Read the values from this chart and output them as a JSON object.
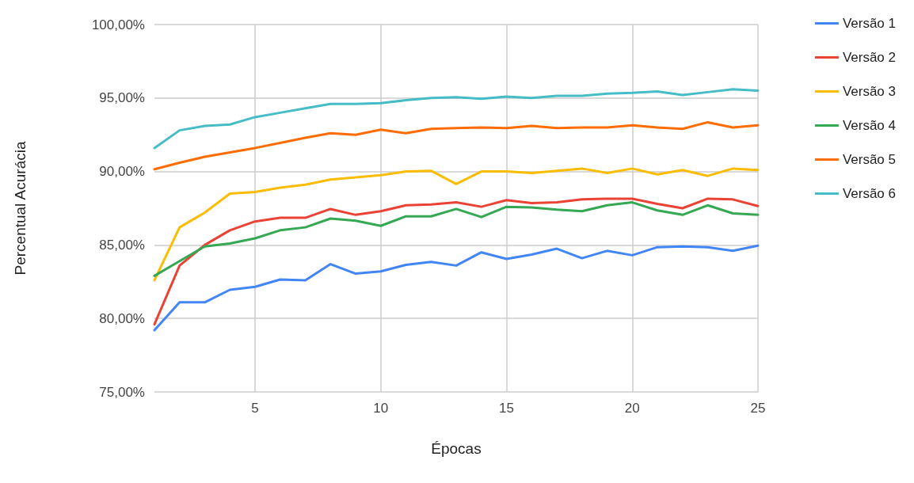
{
  "chart_data": {
    "type": "line",
    "xlabel": "Épocas",
    "ylabel": "Percentual Acurácia",
    "x": [
      1,
      2,
      3,
      4,
      5,
      6,
      7,
      8,
      9,
      10,
      11,
      12,
      13,
      14,
      15,
      16,
      17,
      18,
      19,
      20,
      21,
      22,
      23,
      24,
      25
    ],
    "xlim": [
      1,
      25
    ],
    "xticks": [
      5,
      10,
      15,
      20,
      25
    ],
    "ylim": [
      75,
      100
    ],
    "yticks": [
      {
        "value": 75,
        "label": "75,00%"
      },
      {
        "value": 80,
        "label": "80,00%"
      },
      {
        "value": 85,
        "label": "85,00%"
      },
      {
        "value": 90,
        "label": "90,00%"
      },
      {
        "value": 95,
        "label": "95,00%"
      },
      {
        "value": 100,
        "label": "100,00%"
      }
    ],
    "grid": true,
    "legend": "top right",
    "marker": "none",
    "line_style": "solid",
    "series": [
      {
        "name": "Versão 1",
        "color": "#4285f4",
        "values": [
          79.2,
          81.1,
          81.1,
          81.95,
          82.15,
          82.65,
          82.6,
          83.7,
          83.05,
          83.2,
          83.65,
          83.85,
          83.6,
          84.5,
          84.05,
          84.35,
          84.75,
          84.1,
          84.6,
          84.3,
          84.85,
          84.9,
          84.85,
          84.6,
          84.95
        ]
      },
      {
        "name": "Versão 2",
        "color": "#ea4335",
        "values": [
          79.6,
          83.6,
          85.0,
          86.0,
          86.6,
          86.85,
          86.85,
          87.45,
          87.05,
          87.3,
          87.7,
          87.75,
          87.9,
          87.6,
          88.05,
          87.85,
          87.9,
          88.1,
          88.15,
          88.15,
          87.8,
          87.5,
          88.15,
          88.1,
          87.65
        ]
      },
      {
        "name": "Versão 3",
        "color": "#fbbc04",
        "values": [
          82.6,
          86.2,
          87.2,
          88.5,
          88.6,
          88.9,
          89.1,
          89.45,
          89.6,
          89.75,
          90.0,
          90.05,
          89.15,
          90.0,
          90.0,
          89.9,
          90.05,
          90.2,
          89.9,
          90.2,
          89.8,
          90.1,
          89.7,
          90.2,
          90.1
        ]
      },
      {
        "name": "Versão 4",
        "color": "#34a853",
        "values": [
          82.9,
          83.9,
          84.9,
          85.1,
          85.45,
          86.0,
          86.2,
          86.8,
          86.65,
          86.3,
          86.95,
          86.95,
          87.45,
          86.9,
          87.6,
          87.55,
          87.4,
          87.3,
          87.7,
          87.9,
          87.35,
          87.05,
          87.7,
          87.15,
          87.05
        ]
      },
      {
        "name": "Versão 5",
        "color": "#ff6d01",
        "values": [
          90.15,
          90.6,
          91.0,
          91.3,
          91.6,
          91.95,
          92.3,
          92.6,
          92.5,
          92.85,
          92.6,
          92.9,
          92.95,
          93.0,
          92.95,
          93.1,
          92.95,
          93.0,
          93.0,
          93.15,
          93.0,
          92.9,
          93.35,
          93.0,
          93.15
        ]
      },
      {
        "name": "Versão 6",
        "color": "#46bdc6",
        "values": [
          91.6,
          92.8,
          93.1,
          93.2,
          93.7,
          94.0,
          94.3,
          94.6,
          94.6,
          94.65,
          94.85,
          95.0,
          95.05,
          94.95,
          95.1,
          95.0,
          95.15,
          95.15,
          95.3,
          95.35,
          95.45,
          95.2,
          95.4,
          95.6,
          95.5
        ]
      }
    ]
  }
}
